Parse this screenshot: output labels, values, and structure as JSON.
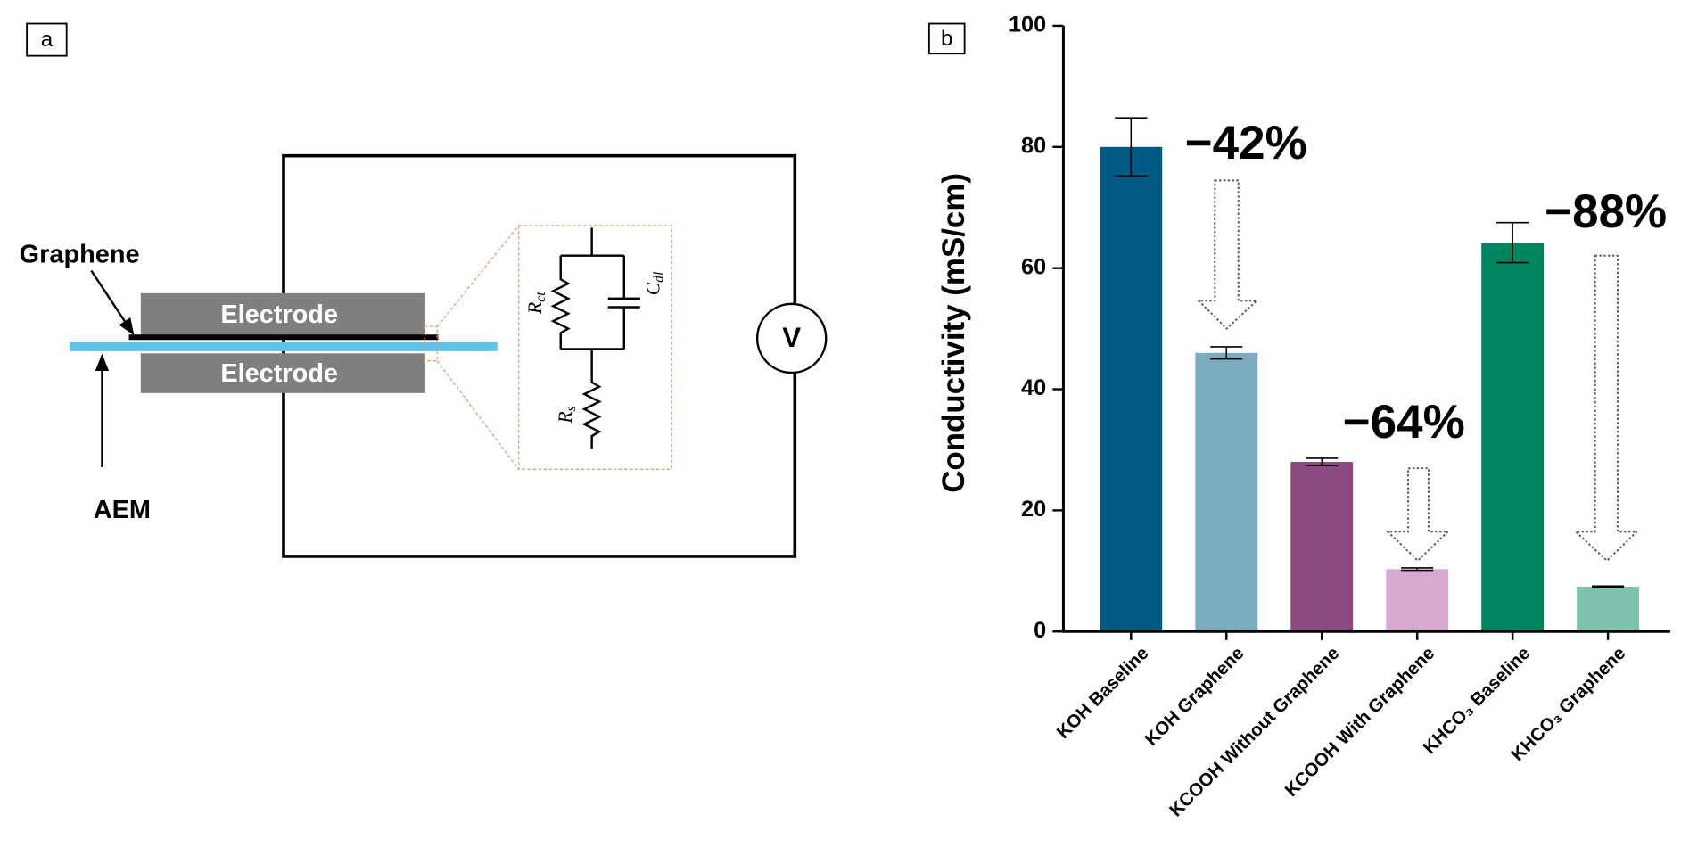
{
  "panel_a": {
    "label": "a",
    "graphene": "Graphene",
    "electrode_top": "Electrode",
    "electrode_bottom": "Electrode",
    "aem": "AEM",
    "voltmeter": "V",
    "r_ct": {
      "symbol": "R",
      "subscript": "ct"
    },
    "c_dl": {
      "symbol": "C",
      "subscript": "dl"
    },
    "r_s": {
      "symbol": "R",
      "subscript": "s"
    }
  },
  "panel_b": {
    "label": "b"
  },
  "chart_data": {
    "type": "bar",
    "y_label": "Conductivity (mS/cm)",
    "categories": [
      "KOH Baseline",
      "KOH Graphene",
      "KCOOH Without Graphene",
      "KCOOH With Graphene",
      "KHCO₃ Baseline",
      "KHCO₃ Graphene"
    ],
    "values": [
      80,
      46,
      28,
      10.3,
      64.2,
      7.4
    ],
    "errors": [
      4.8,
      1.0,
      0.6,
      0.2,
      3.3,
      0.1
    ],
    "colors": [
      "#005a82",
      "#7aabbf",
      "#8a4a80",
      "#d8aad2",
      "#00855f",
      "#7fc3ae"
    ],
    "ylim": [
      0,
      100
    ],
    "yticks": [
      0,
      20,
      40,
      60,
      80,
      100
    ],
    "annotations": [
      "−42%",
      "−64%",
      "−88%"
    ]
  }
}
